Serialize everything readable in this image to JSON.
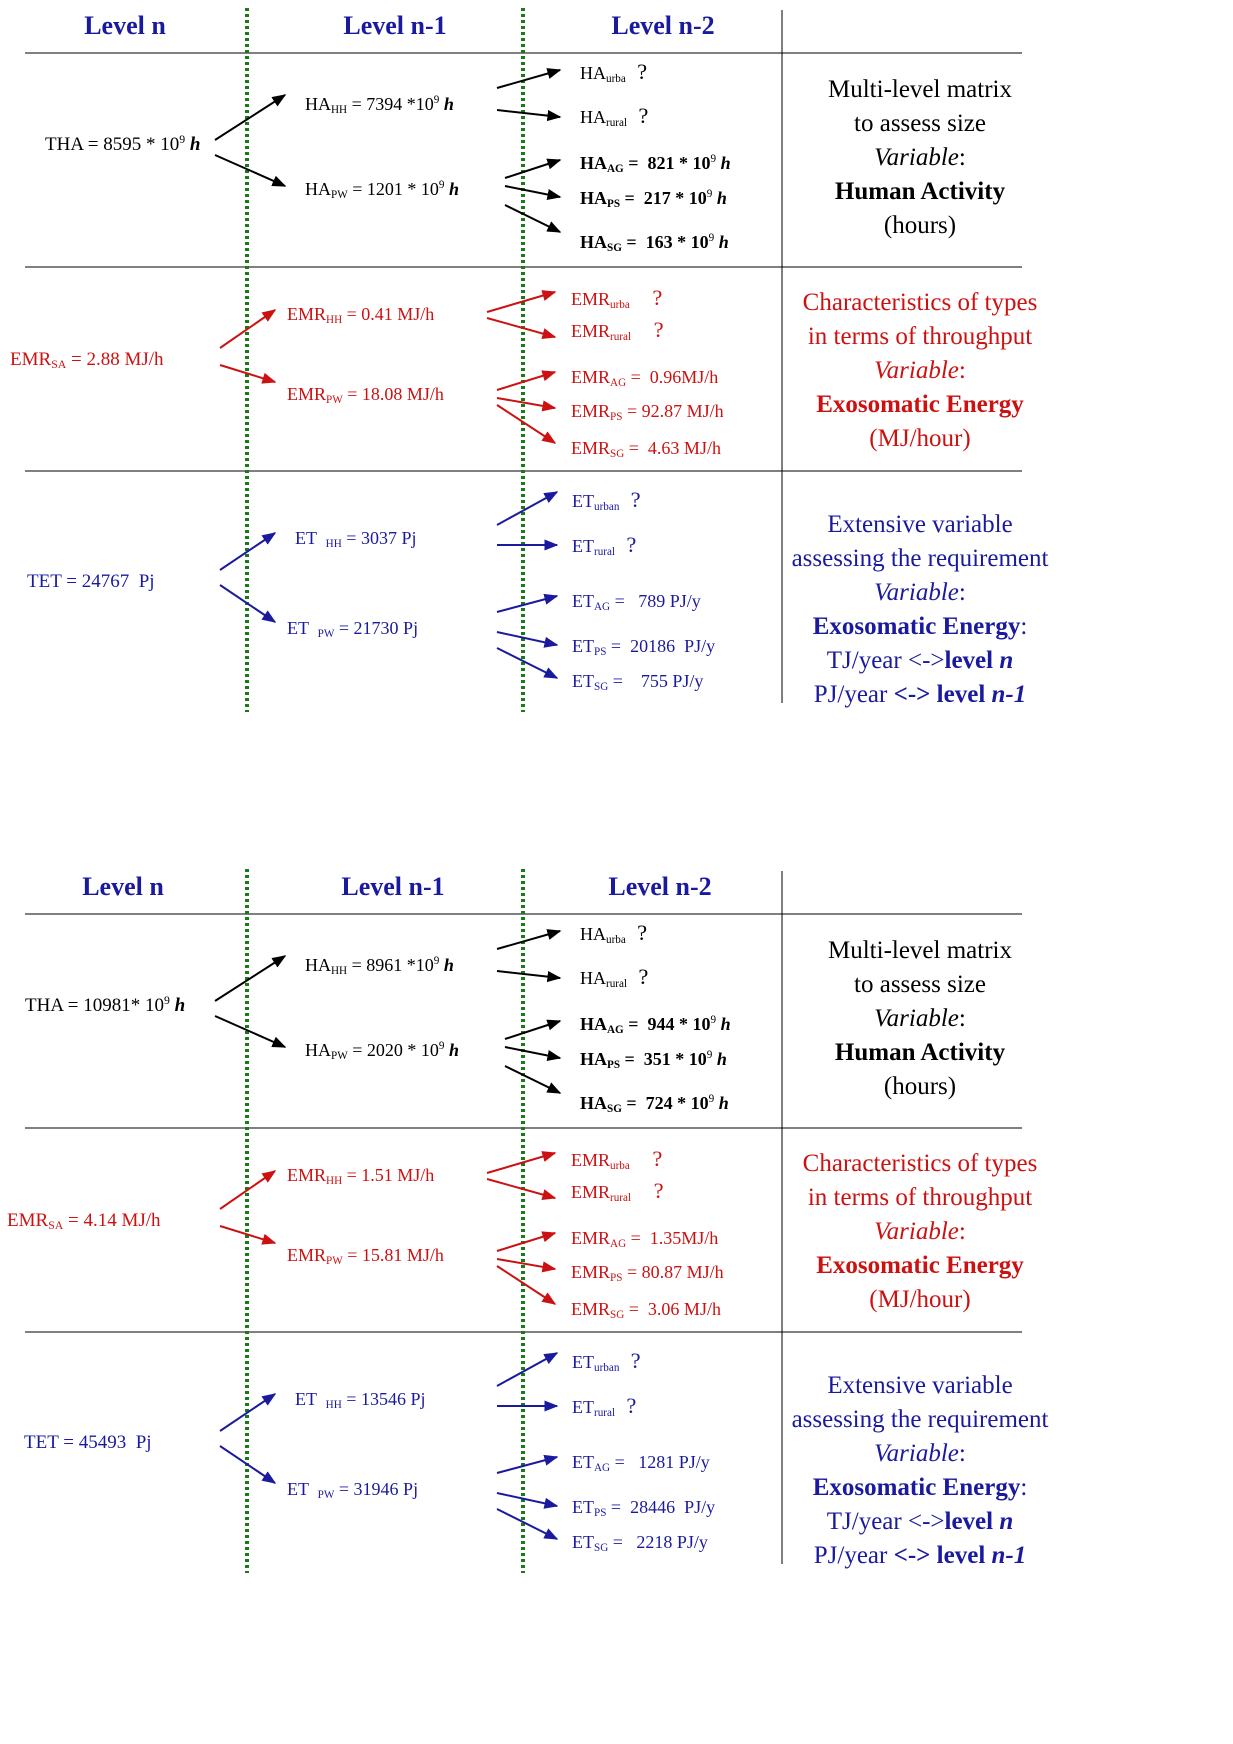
{
  "panels": [
    {
      "headers": [
        "Level n",
        "Level n-1",
        "Level n-2"
      ],
      "rows": [
        {
          "color": "#000000",
          "level_n": [
            [
              "THA = 8595 * 10"
            ],
            [
              "9",
              "sup"
            ],
            [
              " "
            ],
            [
              "h",
              "bi"
            ]
          ],
          "level_n1": [
            [
              [
                "HA"
              ],
              [
                "HH",
                "sub"
              ],
              [
                " = 7394 *10"
              ],
              [
                "9",
                "sup"
              ],
              [
                " "
              ],
              [
                "h",
                "bi"
              ]
            ],
            [
              [
                "HA"
              ],
              [
                "PW",
                "sub"
              ],
              [
                " = 1201 * 10"
              ],
              [
                "9",
                "sup"
              ],
              [
                " "
              ],
              [
                "h",
                "bi"
              ]
            ]
          ],
          "level_n2": [
            [
              [
                "HA"
              ],
              [
                "urba",
                "sub"
              ],
              [
                "  ?",
                "big"
              ]
            ],
            [
              [
                "HA"
              ],
              [
                "rural",
                "sub"
              ],
              [
                "  ?",
                "big"
              ]
            ],
            [
              [
                "HA",
                "b"
              ],
              [
                "AG",
                "bsub"
              ],
              [
                " =  821 * 10",
                "b"
              ],
              [
                "9",
                "sup"
              ],
              [
                " "
              ],
              [
                "h",
                "bi"
              ]
            ],
            [
              [
                "HA",
                "b"
              ],
              [
                "PS",
                "bsub"
              ],
              [
                " =  217 * 10",
                "b"
              ],
              [
                "9",
                "sup"
              ],
              [
                " "
              ],
              [
                "h",
                "bi"
              ]
            ],
            [
              [
                "HA",
                "b"
              ],
              [
                "SG",
                "bsub"
              ],
              [
                " =  163 * 10",
                "b"
              ],
              [
                "9",
                "sup"
              ],
              [
                " "
              ],
              [
                "h",
                "bi"
              ]
            ]
          ],
          "description": [
            [
              [
                "Multi-level matrix"
              ]
            ],
            [
              [
                "to assess size"
              ]
            ],
            [
              [
                "Variable",
                "i"
              ],
              [
                ":"
              ]
            ],
            [
              [
                "Human Activity",
                "b"
              ]
            ],
            [
              [
                "(hours)"
              ]
            ]
          ]
        },
        {
          "color": "#cc1111",
          "level_n": [
            [
              "EMR"
            ],
            [
              "SA",
              "sub"
            ],
            [
              " = 2.88 MJ/h"
            ]
          ],
          "level_n1": [
            [
              [
                "EMR"
              ],
              [
                "HH",
                "sub"
              ],
              [
                " = 0.41 MJ/h"
              ]
            ],
            [
              [
                "EMR"
              ],
              [
                "PW",
                "sub"
              ],
              [
                " = 18.08 MJ/h"
              ]
            ]
          ],
          "level_n2": [
            [
              [
                "EMR"
              ],
              [
                "urba",
                "sub"
              ],
              [
                "    ?",
                "big"
              ]
            ],
            [
              [
                "EMR"
              ],
              [
                "rural",
                "sub"
              ],
              [
                "    ?",
                "big"
              ]
            ],
            [
              [
                "EMR"
              ],
              [
                "AG",
                "sub"
              ],
              [
                " =  0.96MJ/h"
              ]
            ],
            [
              [
                "EMR"
              ],
              [
                "PS",
                "sub"
              ],
              [
                " = 92.87 MJ/h"
              ]
            ],
            [
              [
                "EMR"
              ],
              [
                "SG",
                "sub"
              ],
              [
                " =  4.63 MJ/h"
              ]
            ]
          ],
          "description": [
            [
              [
                "Characteristics of types"
              ]
            ],
            [
              [
                "in terms of throughput"
              ]
            ],
            [
              [
                "Variable",
                "i"
              ],
              [
                ":"
              ]
            ],
            [
              [
                "Exosomatic Energy",
                "b"
              ]
            ],
            [
              [
                "(MJ/hour)"
              ]
            ]
          ]
        },
        {
          "color": "#1a1a9e",
          "level_n": [
            [
              "TET = 24767  Pj"
            ]
          ],
          "level_n1": [
            [
              [
                "ET  "
              ],
              [
                "HH",
                "sub"
              ],
              [
                " = 3037 Pj"
              ]
            ],
            [
              [
                "ET  "
              ],
              [
                "PW",
                "sub"
              ],
              [
                " = 21730 Pj"
              ]
            ]
          ],
          "level_n2": [
            [
              [
                "ET"
              ],
              [
                "urban",
                "sub"
              ],
              [
                "  ?",
                "big"
              ]
            ],
            [
              [
                "ET"
              ],
              [
                "rural",
                "sub"
              ],
              [
                "  ?",
                "big"
              ]
            ],
            [
              [
                "ET"
              ],
              [
                "AG",
                "sub"
              ],
              [
                " =   789 PJ/y"
              ]
            ],
            [
              [
                "ET"
              ],
              [
                "PS",
                "sub"
              ],
              [
                " =  20186  PJ/y"
              ]
            ],
            [
              [
                "ET"
              ],
              [
                "SG",
                "sub"
              ],
              [
                " =    755 PJ/y"
              ]
            ]
          ],
          "description": [
            [
              [
                "Extensive variable"
              ]
            ],
            [
              [
                "assessing the requirement"
              ]
            ],
            [
              [
                "Variable",
                "i"
              ],
              [
                ":"
              ]
            ],
            [
              [
                "Exosomatic Energy",
                "b"
              ],
              [
                ":"
              ]
            ],
            [
              [
                "TJ/year <->"
              ],
              [
                "level ",
                "b"
              ],
              [
                "n",
                "bi"
              ]
            ],
            [
              [
                "PJ/year "
              ],
              [
                "<-> level ",
                "b"
              ],
              [
                "n-1",
                "bi"
              ]
            ]
          ]
        }
      ]
    },
    {
      "headers": [
        "Level n",
        "Level n-1",
        "Level n-2"
      ],
      "rows": [
        {
          "color": "#000000",
          "level_n": [
            [
              "THA = 10981* 10"
            ],
            [
              "9",
              "sup"
            ],
            [
              " "
            ],
            [
              "h",
              "bi"
            ]
          ],
          "level_n1": [
            [
              [
                "HA"
              ],
              [
                "HH",
                "sub"
              ],
              [
                " = 8961 *10"
              ],
              [
                "9",
                "sup"
              ],
              [
                " "
              ],
              [
                "h",
                "bi"
              ]
            ],
            [
              [
                "HA"
              ],
              [
                "PW",
                "sub"
              ],
              [
                " = 2020 * 10"
              ],
              [
                "9",
                "sup"
              ],
              [
                " "
              ],
              [
                "h",
                "bi"
              ]
            ]
          ],
          "level_n2": [
            [
              [
                "HA"
              ],
              [
                "urba",
                "sub"
              ],
              [
                "  ?",
                "big"
              ]
            ],
            [
              [
                "HA"
              ],
              [
                "rural",
                "sub"
              ],
              [
                "  ?",
                "big"
              ]
            ],
            [
              [
                "HA",
                "b"
              ],
              [
                "AG",
                "bsub"
              ],
              [
                " =  944 * 10",
                "b"
              ],
              [
                "9",
                "sup"
              ],
              [
                " "
              ],
              [
                "h",
                "bi"
              ]
            ],
            [
              [
                "HA",
                "b"
              ],
              [
                "PS",
                "bsub"
              ],
              [
                " =  351 * 10",
                "b"
              ],
              [
                "9",
                "sup"
              ],
              [
                " "
              ],
              [
                "h",
                "bi"
              ]
            ],
            [
              [
                "HA",
                "b"
              ],
              [
                "SG",
                "bsub"
              ],
              [
                " =  724 * 10",
                "b"
              ],
              [
                "9",
                "sup"
              ],
              [
                " "
              ],
              [
                "h",
                "bi"
              ]
            ]
          ],
          "description": [
            [
              [
                "Multi-level matrix"
              ]
            ],
            [
              [
                "to assess size"
              ]
            ],
            [
              [
                "Variable",
                "i"
              ],
              [
                ":"
              ]
            ],
            [
              [
                "Human Activity",
                "b"
              ]
            ],
            [
              [
                "(hours)"
              ]
            ]
          ]
        },
        {
          "color": "#cc1111",
          "level_n": [
            [
              "EMR"
            ],
            [
              "SA",
              "sub"
            ],
            [
              " = 4.14 MJ/h"
            ]
          ],
          "level_n1": [
            [
              [
                "EMR"
              ],
              [
                "HH",
                "sub"
              ],
              [
                " = 1.51 MJ/h"
              ]
            ],
            [
              [
                "EMR"
              ],
              [
                "PW",
                "sub"
              ],
              [
                " = 15.81 MJ/h"
              ]
            ]
          ],
          "level_n2": [
            [
              [
                "EMR"
              ],
              [
                "urba",
                "sub"
              ],
              [
                "    ?",
                "big"
              ]
            ],
            [
              [
                "EMR"
              ],
              [
                "rural",
                "sub"
              ],
              [
                "    ?",
                "big"
              ]
            ],
            [
              [
                "EMR"
              ],
              [
                "AG",
                "sub"
              ],
              [
                " =  1.35MJ/h"
              ]
            ],
            [
              [
                "EMR"
              ],
              [
                "PS",
                "sub"
              ],
              [
                " = 80.87 MJ/h"
              ]
            ],
            [
              [
                "EMR"
              ],
              [
                "SG",
                "sub"
              ],
              [
                " =  3.06 MJ/h"
              ]
            ]
          ],
          "description": [
            [
              [
                "Characteristics of types"
              ]
            ],
            [
              [
                "in terms of throughput"
              ]
            ],
            [
              [
                "Variable",
                "i"
              ],
              [
                ":"
              ]
            ],
            [
              [
                "Exosomatic Energy",
                "b"
              ]
            ],
            [
              [
                "(MJ/hour)"
              ]
            ]
          ]
        },
        {
          "color": "#1a1a9e",
          "level_n": [
            [
              "TET = 45493  Pj"
            ]
          ],
          "level_n1": [
            [
              [
                "ET  "
              ],
              [
                "HH",
                "sub"
              ],
              [
                " = 13546 Pj"
              ]
            ],
            [
              [
                "ET  "
              ],
              [
                "PW",
                "sub"
              ],
              [
                " = 31946 Pj"
              ]
            ]
          ],
          "level_n2": [
            [
              [
                "ET"
              ],
              [
                "urban",
                "sub"
              ],
              [
                "  ?",
                "big"
              ]
            ],
            [
              [
                "ET"
              ],
              [
                "rural",
                "sub"
              ],
              [
                "  ?",
                "big"
              ]
            ],
            [
              [
                "ET"
              ],
              [
                "AG",
                "sub"
              ],
              [
                " =   1281 PJ/y"
              ]
            ],
            [
              [
                "ET"
              ],
              [
                "PS",
                "sub"
              ],
              [
                " =  28446  PJ/y"
              ]
            ],
            [
              [
                "ET"
              ],
              [
                "SG",
                "sub"
              ],
              [
                " =   2218 PJ/y"
              ]
            ]
          ],
          "description": [
            [
              [
                "Extensive variable"
              ]
            ],
            [
              [
                "assessing the requirement"
              ]
            ],
            [
              [
                "Variable",
                "i"
              ],
              [
                ":"
              ]
            ],
            [
              [
                "Exosomatic Energy",
                "b"
              ],
              [
                ":"
              ]
            ],
            [
              [
                "TJ/year <->"
              ],
              [
                "level ",
                "b"
              ],
              [
                "n",
                "bi"
              ]
            ],
            [
              [
                "PJ/year "
              ],
              [
                "<-> level ",
                "b"
              ],
              [
                "n-1",
                "bi"
              ]
            ]
          ]
        }
      ]
    }
  ]
}
